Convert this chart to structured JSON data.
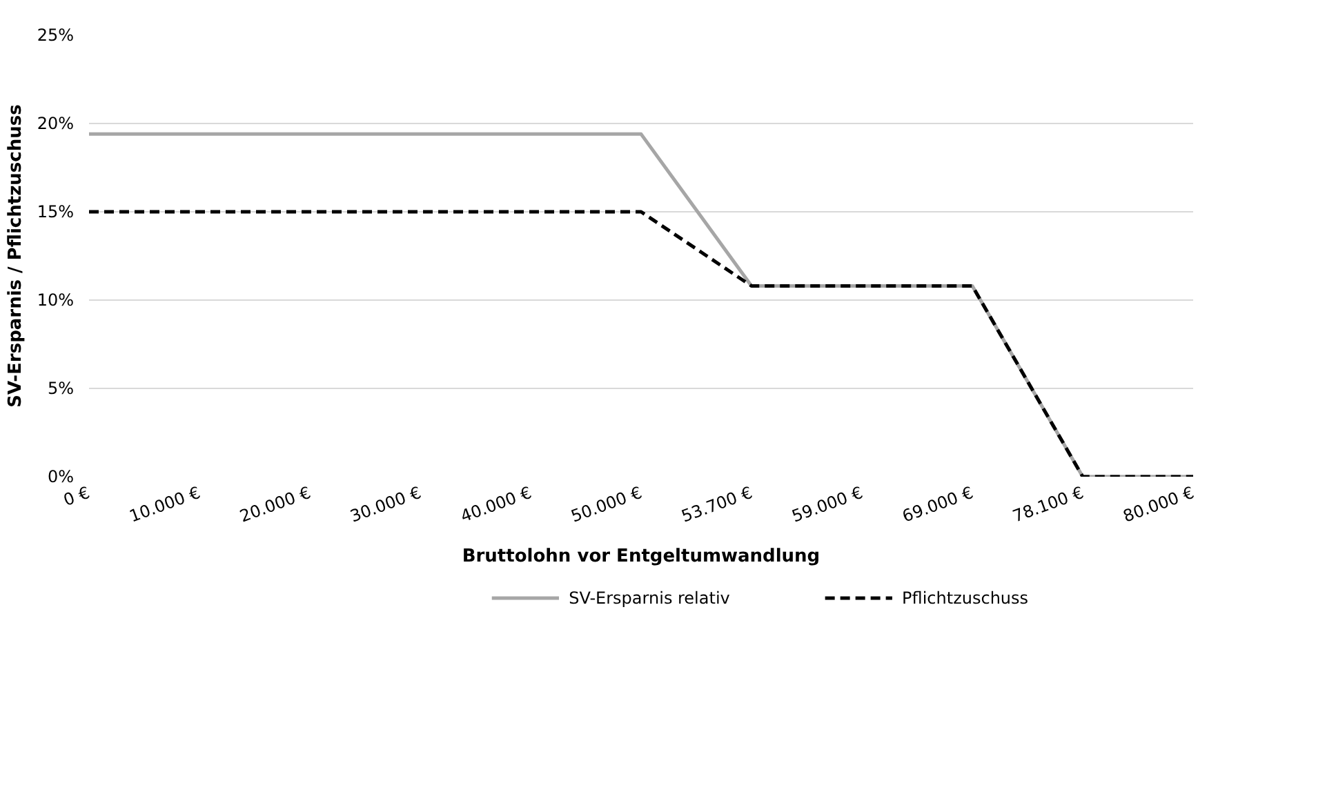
{
  "chart_data": {
    "type": "line",
    "xlabel": "Bruttolohn vor Entgeltumwandlung",
    "ylabel": "SV-Ersparnis / Pflichtzuschuss",
    "categories": [
      "0 €",
      "10.000 €",
      "20.000 €",
      "30.000 €",
      "40.000 €",
      "50.000 €",
      "53.700 €",
      "59.000 €",
      "69.000 €",
      "78.100 €",
      "80.000 €"
    ],
    "ylim": [
      0,
      25
    ],
    "yticks": [
      {
        "value": 0,
        "label": "0%"
      },
      {
        "value": 5,
        "label": "5%"
      },
      {
        "value": 10,
        "label": "10%"
      },
      {
        "value": 15,
        "label": "15%"
      },
      {
        "value": 20,
        "label": "20%"
      },
      {
        "value": 25,
        "label": "25%"
      }
    ],
    "grid": "y",
    "legend": "bottom",
    "series": [
      {
        "name": "SV-Ersparnis relativ",
        "color": "#a6a6a6",
        "line_style": "solid",
        "values": [
          19.4,
          19.4,
          19.4,
          19.4,
          19.4,
          19.4,
          10.8,
          10.8,
          10.8,
          0,
          0
        ]
      },
      {
        "name": "Pflichtzuschuss",
        "color": "#000000",
        "line_style": "dashed",
        "values": [
          15,
          15,
          15,
          15,
          15,
          15,
          10.8,
          10.8,
          10.8,
          0,
          0
        ]
      }
    ]
  }
}
